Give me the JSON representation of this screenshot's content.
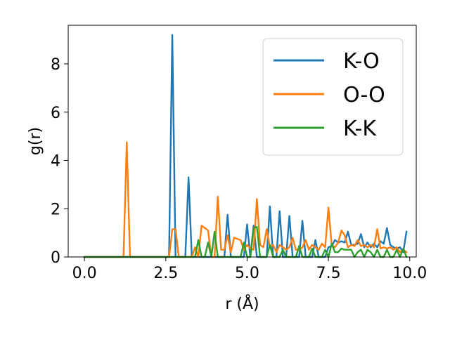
{
  "chart_data": {
    "type": "line",
    "title": "",
    "xlabel": "r (Å)",
    "ylabel": "g(r)",
    "xlim": [
      -0.5,
      10.2
    ],
    "ylim": [
      0,
      9.6
    ],
    "xticks": [
      0.0,
      2.5,
      5.0,
      7.5,
      10.0
    ],
    "xtick_labels": [
      "0.0",
      "2.5",
      "5.0",
      "7.5",
      "10.0"
    ],
    "yticks": [
      0,
      2,
      4,
      6,
      8
    ],
    "ytick_labels": [
      "0",
      "2",
      "4",
      "6",
      "8"
    ],
    "grid": false,
    "legend_position": "top-right",
    "series": [
      {
        "name": "K-O",
        "color": "#1f77b4",
        "points": [
          [
            0.0,
            0
          ],
          [
            2.5,
            0
          ],
          [
            2.6,
            0
          ],
          [
            2.7,
            9.2
          ],
          [
            2.8,
            0
          ],
          [
            3.0,
            0
          ],
          [
            3.1,
            0
          ],
          [
            3.2,
            3.3
          ],
          [
            3.3,
            0
          ],
          [
            3.6,
            0
          ],
          [
            4.0,
            0
          ],
          [
            4.3,
            0
          ],
          [
            4.4,
            1.75
          ],
          [
            4.5,
            0
          ],
          [
            4.9,
            0
          ],
          [
            5.0,
            1.35
          ],
          [
            5.1,
            0
          ],
          [
            5.2,
            1.3
          ],
          [
            5.3,
            0
          ],
          [
            5.6,
            0
          ],
          [
            5.7,
            2.1
          ],
          [
            5.8,
            0
          ],
          [
            5.9,
            0
          ],
          [
            6.0,
            1.9
          ],
          [
            6.1,
            0
          ],
          [
            6.2,
            0
          ],
          [
            6.3,
            1.7
          ],
          [
            6.4,
            0
          ],
          [
            6.6,
            0
          ],
          [
            6.7,
            1.5
          ],
          [
            6.8,
            0
          ],
          [
            7.0,
            0
          ],
          [
            7.1,
            0.7
          ],
          [
            7.2,
            0
          ],
          [
            7.4,
            0
          ],
          [
            7.5,
            0.4
          ],
          [
            7.6,
            0.45
          ],
          [
            7.7,
            0.7
          ],
          [
            7.8,
            0.6
          ],
          [
            7.9,
            0.65
          ],
          [
            8.0,
            0.6
          ],
          [
            8.1,
            1.05
          ],
          [
            8.2,
            0.5
          ],
          [
            8.3,
            0.5
          ],
          [
            8.4,
            0.55
          ],
          [
            8.5,
            0.95
          ],
          [
            8.6,
            0.4
          ],
          [
            8.7,
            0.6
          ],
          [
            8.8,
            0.4
          ],
          [
            8.9,
            0.55
          ],
          [
            9.0,
            0.4
          ],
          [
            9.1,
            0.65
          ],
          [
            9.2,
            0.55
          ],
          [
            9.3,
            1.2
          ],
          [
            9.4,
            0.5
          ],
          [
            9.5,
            0.4
          ],
          [
            9.6,
            0.35
          ],
          [
            9.7,
            0.4
          ],
          [
            9.8,
            0.2
          ],
          [
            9.9,
            1.05
          ]
        ]
      },
      {
        "name": "O-O",
        "color": "#ff7f0e",
        "points": [
          [
            0.0,
            0
          ],
          [
            1.2,
            0
          ],
          [
            1.3,
            4.75
          ],
          [
            1.4,
            0
          ],
          [
            2.5,
            0
          ],
          [
            2.6,
            0
          ],
          [
            2.7,
            1.15
          ],
          [
            2.8,
            1.15
          ],
          [
            2.9,
            0
          ],
          [
            3.2,
            0
          ],
          [
            3.3,
            0
          ],
          [
            3.4,
            0.4
          ],
          [
            3.5,
            0
          ],
          [
            3.6,
            1.3
          ],
          [
            3.7,
            1.2
          ],
          [
            3.8,
            1.1
          ],
          [
            3.9,
            0
          ],
          [
            4.0,
            0
          ],
          [
            4.1,
            2.5
          ],
          [
            4.2,
            0.3
          ],
          [
            4.3,
            0.3
          ],
          [
            4.4,
            0.9
          ],
          [
            4.5,
            0.2
          ],
          [
            4.6,
            0.8
          ],
          [
            4.7,
            0.75
          ],
          [
            4.8,
            0.7
          ],
          [
            4.9,
            0.3
          ],
          [
            5.0,
            0.5
          ],
          [
            5.1,
            0.35
          ],
          [
            5.2,
            0.3
          ],
          [
            5.3,
            2.4
          ],
          [
            5.4,
            0.5
          ],
          [
            5.5,
            0.4
          ],
          [
            5.6,
            1.15
          ],
          [
            5.7,
            0.4
          ],
          [
            5.8,
            0.5
          ],
          [
            5.9,
            0.2
          ],
          [
            6.0,
            0.5
          ],
          [
            6.1,
            0.4
          ],
          [
            6.2,
            0.3
          ],
          [
            6.3,
            0.4
          ],
          [
            6.4,
            0.8
          ],
          [
            6.5,
            0.3
          ],
          [
            6.6,
            0.3
          ],
          [
            6.7,
            0.4
          ],
          [
            6.8,
            0.7
          ],
          [
            6.9,
            0.3
          ],
          [
            7.0,
            0.5
          ],
          [
            7.1,
            0.4
          ],
          [
            7.2,
            0.3
          ],
          [
            7.3,
            0.55
          ],
          [
            7.4,
            0.4
          ],
          [
            7.5,
            2.05
          ],
          [
            7.6,
            0.5
          ],
          [
            7.7,
            0.4
          ],
          [
            7.8,
            0.6
          ],
          [
            7.9,
            1.1
          ],
          [
            8.0,
            0.9
          ],
          [
            8.1,
            0.4
          ],
          [
            8.2,
            0.5
          ],
          [
            8.3,
            0.45
          ],
          [
            8.4,
            0.7
          ],
          [
            8.5,
            0.45
          ],
          [
            8.6,
            0.5
          ],
          [
            8.7,
            0.4
          ],
          [
            8.8,
            0.5
          ],
          [
            8.9,
            0.4
          ],
          [
            9.0,
            1.15
          ],
          [
            9.1,
            0.35
          ],
          [
            9.2,
            0.4
          ],
          [
            9.3,
            0.35
          ],
          [
            9.4,
            0.4
          ],
          [
            9.5,
            0.3
          ],
          [
            9.6,
            0.4
          ],
          [
            9.7,
            0.2
          ],
          [
            9.8,
            0.3
          ],
          [
            9.9,
            0.2
          ]
        ]
      },
      {
        "name": "K-K",
        "color": "#2ca02c",
        "points": [
          [
            0.0,
            0
          ],
          [
            3.3,
            0
          ],
          [
            3.4,
            0
          ],
          [
            3.5,
            0.7
          ],
          [
            3.6,
            0
          ],
          [
            3.7,
            0
          ],
          [
            3.8,
            0.6
          ],
          [
            3.9,
            0
          ],
          [
            4.0,
            1.05
          ],
          [
            4.1,
            0
          ],
          [
            4.7,
            0
          ],
          [
            4.8,
            0
          ],
          [
            4.9,
            0.6
          ],
          [
            5.0,
            0
          ],
          [
            5.1,
            0
          ],
          [
            5.2,
            1.2
          ],
          [
            5.3,
            1.25
          ],
          [
            5.4,
            0
          ],
          [
            5.6,
            0
          ],
          [
            5.7,
            0.5
          ],
          [
            5.8,
            0
          ],
          [
            6.0,
            0
          ],
          [
            6.1,
            0.3
          ],
          [
            6.2,
            0
          ],
          [
            6.5,
            0
          ],
          [
            6.6,
            0.45
          ],
          [
            6.7,
            0
          ],
          [
            6.9,
            0
          ],
          [
            7.0,
            0.35
          ],
          [
            7.1,
            0
          ],
          [
            7.3,
            0
          ],
          [
            7.4,
            0.3
          ],
          [
            7.5,
            0
          ],
          [
            7.6,
            0.55
          ],
          [
            7.7,
            0.2
          ],
          [
            7.8,
            0.2
          ],
          [
            7.9,
            0.35
          ],
          [
            8.0,
            0.3
          ],
          [
            8.1,
            0.3
          ],
          [
            8.2,
            0.3
          ],
          [
            8.3,
            0
          ],
          [
            8.4,
            0.2
          ],
          [
            8.5,
            0.3
          ],
          [
            8.6,
            0
          ],
          [
            8.7,
            0.3
          ],
          [
            8.8,
            0.2
          ],
          [
            8.9,
            0
          ],
          [
            9.0,
            0.3
          ],
          [
            9.1,
            0
          ],
          [
            9.2,
            0
          ],
          [
            9.3,
            0.3
          ],
          [
            9.4,
            0
          ],
          [
            9.5,
            0
          ],
          [
            9.6,
            0.3
          ],
          [
            9.7,
            0
          ],
          [
            9.8,
            0.35
          ],
          [
            9.9,
            0
          ]
        ]
      }
    ]
  }
}
